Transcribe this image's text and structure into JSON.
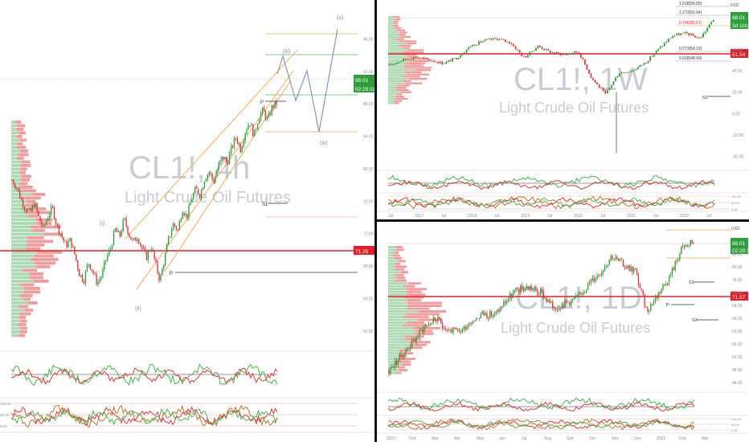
{
  "colors": {
    "up": "#2e9e3a",
    "down": "#e0353a",
    "volume_up": "#9fd3a7",
    "volume_down": "#f08c8c",
    "fib_orange": "#f4a24a",
    "green_line": "#4fbf6a",
    "wave_blue": "#7a90b0",
    "pivot_red": "#e41e26",
    "watermark": "#c9cdd3",
    "osc_green": "#45b34f",
    "osc_red": "#e0353a",
    "osc_brown": "#b07a30"
  },
  "chart_data": [
    {
      "id": "cl-4h",
      "type": "line",
      "watermark_symbol": "CL1!, 4h",
      "watermark_name": "Light Crude Oil Futures",
      "price_tag": "88.01",
      "timer_tag": "02:29:11",
      "pivot_tag": "71.25",
      "wave_labels": [
        "(i)",
        "(ii)",
        "(iii)",
        "(iv)",
        "(v)"
      ],
      "level_labels": [
        "S1",
        "P",
        "P"
      ],
      "ylim": [
        58,
        100
      ],
      "series": [
        {
          "values": [
            78.5,
            77.8,
            76.2,
            75.1,
            74.5,
            75.8,
            73.9,
            72.6,
            74.1,
            75.2,
            73.0,
            71.8,
            70.5,
            71.2,
            69.4,
            67.1,
            66.2,
            68.5,
            67.4,
            65.9,
            66.8,
            68.9,
            70.2,
            72.5,
            71.6,
            73.8,
            72.1,
            70.9,
            71.7,
            70.2,
            69.1,
            70.5,
            68.3,
            66.2,
            68.8,
            71.5,
            73.2,
            72.4,
            75.1,
            74.0,
            76.2,
            77.5,
            76.8,
            78.9,
            79.6,
            78.4,
            80.3,
            81.5,
            80.7,
            82.6,
            83.9,
            82.4,
            84.6,
            85.8,
            84.1,
            86.3,
            87.2,
            85.9,
            87.6,
            88.01
          ]
        }
      ],
      "indicator_labels": [
        "100.00",
        "50.00",
        "0.00"
      ]
    },
    {
      "id": "cl-1w",
      "type": "line",
      "watermark_symbol": "CL1!, 1W",
      "watermark_name": "Light Crude Oil Futures",
      "currency": "USD",
      "price_tag": "88.01",
      "timer_tag": "3d 11h",
      "pivot_tag": "51.54",
      "fib_labels": [
        "1.618(99.55)",
        "1.273(91.64)",
        "0.786(80.57)",
        "0.273(56.13)",
        "0.618(48.43)"
      ],
      "level_labels": [
        "S2"
      ],
      "x_ticks": [
        "Jul",
        "2017",
        "Jul",
        "2018",
        "Jul",
        "2019",
        "Jul",
        "2020",
        "Jul",
        "2021",
        "Jul",
        "2022",
        "Jul"
      ],
      "y_ticks": [
        "60.00",
        "40.00",
        "20.00",
        "0.00",
        "-20.00",
        "-40.00"
      ],
      "ylim": [
        -50,
        100
      ],
      "x": [
        "2016-07",
        "2016-10",
        "2017-01",
        "2017-04",
        "2017-07",
        "2017-10",
        "2018-01",
        "2018-04",
        "2018-07",
        "2018-10",
        "2019-01",
        "2019-04",
        "2019-07",
        "2019-10",
        "2020-01",
        "2020-03",
        "2020-04",
        "2020-06",
        "2020-09",
        "2020-12",
        "2021-03",
        "2021-06",
        "2021-09",
        "2021-12",
        "2022-02"
      ],
      "series": [
        {
          "values": [
            45,
            50,
            53,
            50,
            47,
            52,
            63,
            68,
            70,
            66,
            52,
            63,
            57,
            55,
            58,
            33,
            18,
            38,
            40,
            48,
            61,
            73,
            75,
            70,
            88
          ]
        }
      ],
      "low_wick": -37,
      "indicator_labels": [
        "100.00",
        "50.00",
        "0.00"
      ]
    },
    {
      "id": "cl-1d",
      "type": "line",
      "watermark_symbol": "CL1!, 1D",
      "watermark_name": "Light Crude Oil Futures",
      "currency": "USD",
      "price_tag": "88.01",
      "timer_tag": "02:29:11",
      "pivot_tag": "71.57",
      "level_labels": [
        "P",
        "S1",
        "S2"
      ],
      "x_ticks": [
        "2021",
        "Feb",
        "Mar",
        "Apr",
        "May",
        "Jun",
        "Jul",
        "Aug",
        "Sep",
        "Oct",
        "Nov",
        "Dec",
        "2022",
        "Feb",
        "Mar"
      ],
      "y_ticks": [
        "84.00",
        "80.00",
        "76.00",
        "72.00",
        "68.00",
        "64.00",
        "60.00",
        "56.00",
        "52.00",
        "48.00",
        "44.00"
      ],
      "ylim": [
        42,
        92
      ],
      "x": [
        "2021-01",
        "2021-01",
        "2021-02",
        "2021-02",
        "2021-03",
        "2021-03",
        "2021-04",
        "2021-04",
        "2021-05",
        "2021-05",
        "2021-06",
        "2021-06",
        "2021-07",
        "2021-07",
        "2021-08",
        "2021-08",
        "2021-09",
        "2021-09",
        "2021-10",
        "2021-10",
        "2021-11",
        "2021-11",
        "2021-12",
        "2021-12",
        "2022-01",
        "2022-01",
        "2022-02"
      ],
      "series": [
        {
          "values": [
            47.6,
            52.2,
            56.5,
            61.3,
            63.8,
            60.5,
            59.6,
            63.2,
            65.4,
            64.8,
            69.5,
            72.9,
            73.6,
            71.8,
            67.4,
            68.6,
            70.1,
            74.5,
            78.2,
            83.4,
            80.6,
            78.9,
            66.2,
            71.8,
            77.4,
            85.6,
            88.01
          ]
        }
      ],
      "indicator_labels": [
        "100.00",
        "50.00",
        "0.00"
      ]
    }
  ]
}
